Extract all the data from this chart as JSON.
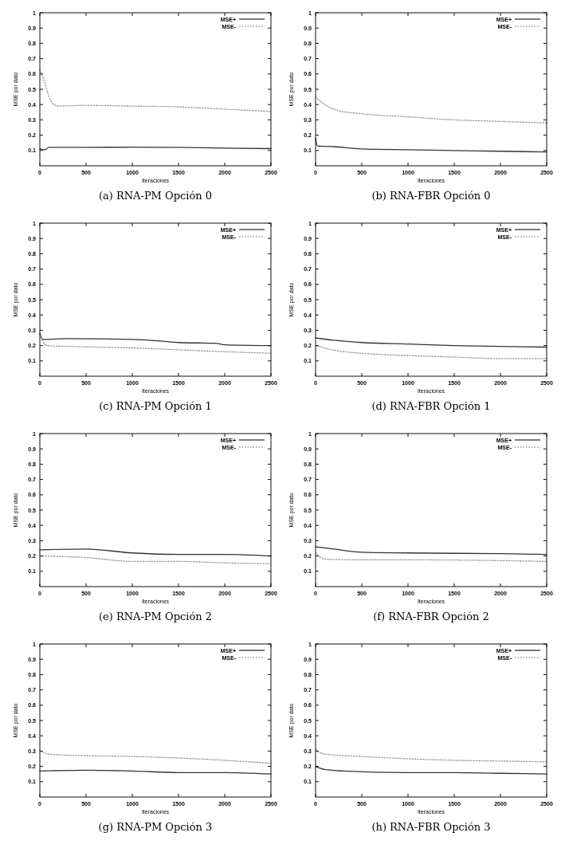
{
  "chart_data": [
    {
      "type": "line",
      "title": "(a) RNA-PM Opción 0",
      "xlabel": "Iteraciones",
      "ylabel": "MSE por dato",
      "xlim": [
        0,
        2500
      ],
      "xticks": [
        0,
        500,
        1000,
        1500,
        2000,
        2500
      ],
      "ylim": [
        0,
        1
      ],
      "yticks": [
        0.1,
        0.2,
        0.3,
        0.4,
        0.5,
        0.6,
        0.7,
        0.8,
        0.9,
        1
      ],
      "legend": "top right",
      "series": [
        {
          "name": "MSE+",
          "color": "#333333",
          "line_style": "solid",
          "x": [
            0,
            50,
            100,
            500,
            1000,
            1500,
            2000,
            2500
          ],
          "values": [
            0.11,
            0.105,
            0.12,
            0.12,
            0.122,
            0.12,
            0.115,
            0.112
          ]
        },
        {
          "name": "MSE-",
          "color": "#999999",
          "line_style": "dotted",
          "x": [
            0,
            50,
            100,
            150,
            200,
            500,
            1000,
            1500,
            2000,
            2500
          ],
          "values": [
            0.63,
            0.55,
            0.45,
            0.4,
            0.39,
            0.395,
            0.39,
            0.385,
            0.37,
            0.355
          ]
        }
      ]
    },
    {
      "type": "line",
      "title": "(b) RNA-FBR Opción 0",
      "xlabel": "Iteraciones",
      "ylabel": "MSE por dato",
      "xlim": [
        0,
        2500
      ],
      "xticks": [
        0,
        500,
        1000,
        1500,
        2000,
        2500
      ],
      "ylim": [
        0,
        1
      ],
      "yticks": [
        0.1,
        0.2,
        0.3,
        0.4,
        0.5,
        0.6,
        0.7,
        0.8,
        0.9,
        1
      ],
      "legend": "top right",
      "series": [
        {
          "name": "MSE+",
          "color": "#333333",
          "line_style": "solid",
          "x": [
            0,
            20,
            200,
            500,
            1000,
            1500,
            2000,
            2500
          ],
          "values": [
            0.18,
            0.13,
            0.125,
            0.11,
            0.105,
            0.1,
            0.095,
            0.09
          ]
        },
        {
          "name": "MSE-",
          "color": "#999999",
          "line_style": "dotted",
          "x": [
            0,
            100,
            250,
            500,
            1000,
            1500,
            2000,
            2500
          ],
          "values": [
            0.45,
            0.4,
            0.36,
            0.34,
            0.32,
            0.3,
            0.29,
            0.28
          ]
        }
      ]
    },
    {
      "type": "line",
      "title": "(c) RNA-PM Opción 1",
      "xlabel": "Iteraciones",
      "ylabel": "MSE por dato",
      "xlim": [
        0,
        2500
      ],
      "xticks": [
        0,
        500,
        1000,
        1500,
        2000,
        2500
      ],
      "ylim": [
        0,
        1
      ],
      "yticks": [
        0.1,
        0.2,
        0.3,
        0.4,
        0.5,
        0.6,
        0.7,
        0.8,
        0.9,
        1
      ],
      "legend": "top right",
      "series": [
        {
          "name": "MSE+",
          "color": "#333333",
          "line_style": "solid",
          "x": [
            0,
            30,
            300,
            1000,
            1300,
            1500,
            1900,
            2000,
            2500
          ],
          "values": [
            0.28,
            0.24,
            0.245,
            0.24,
            0.23,
            0.22,
            0.215,
            0.205,
            0.2
          ]
        },
        {
          "name": "MSE-",
          "color": "#999999",
          "line_style": "dotted",
          "x": [
            0,
            80,
            300,
            1000,
            1400,
            2000,
            2500
          ],
          "values": [
            0.27,
            0.2,
            0.195,
            0.185,
            0.175,
            0.16,
            0.15
          ]
        }
      ]
    },
    {
      "type": "line",
      "title": "(d) RNA-FBR Opción 1",
      "xlabel": "Iteraciones",
      "ylabel": "MSE por dato",
      "xlim": [
        0,
        2500
      ],
      "xticks": [
        0,
        500,
        1000,
        1500,
        2000,
        2500
      ],
      "ylim": [
        0,
        1
      ],
      "yticks": [
        0.1,
        0.2,
        0.3,
        0.4,
        0.5,
        0.6,
        0.7,
        0.8,
        0.9,
        1
      ],
      "legend": "top right",
      "series": [
        {
          "name": "MSE+",
          "color": "#333333",
          "line_style": "solid",
          "x": [
            0,
            200,
            500,
            1000,
            1500,
            2000,
            2500
          ],
          "values": [
            0.25,
            0.235,
            0.22,
            0.21,
            0.2,
            0.195,
            0.19
          ]
        },
        {
          "name": "MSE-",
          "color": "#999999",
          "line_style": "dotted",
          "x": [
            0,
            200,
            500,
            1000,
            1500,
            2000,
            2500
          ],
          "values": [
            0.2,
            0.17,
            0.15,
            0.135,
            0.125,
            0.115,
            0.115
          ]
        }
      ]
    },
    {
      "type": "line",
      "title": "(e) RNA-PM Opción 2",
      "xlabel": "Iteraciones",
      "ylabel": "MSE por dato",
      "xlim": [
        0,
        2500
      ],
      "xticks": [
        0,
        500,
        1000,
        1500,
        2000,
        2500
      ],
      "ylim": [
        0,
        1
      ],
      "yticks": [
        0.1,
        0.2,
        0.3,
        0.4,
        0.5,
        0.6,
        0.7,
        0.8,
        0.9,
        1
      ],
      "legend": "top right",
      "series": [
        {
          "name": "MSE+",
          "color": "#333333",
          "line_style": "solid",
          "x": [
            0,
            500,
            1000,
            1500,
            2000,
            2500
          ],
          "values": [
            0.24,
            0.245,
            0.22,
            0.21,
            0.21,
            0.2
          ]
        },
        {
          "name": "MSE-",
          "color": "#999999",
          "line_style": "dotted",
          "x": [
            0,
            500,
            1000,
            1500,
            2000,
            2500
          ],
          "values": [
            0.2,
            0.19,
            0.165,
            0.165,
            0.155,
            0.15
          ]
        }
      ]
    },
    {
      "type": "line",
      "title": "(f) RNA-FBR Opción 2",
      "xlabel": "Iteraciones",
      "ylabel": "MSE por dato",
      "xlim": [
        0,
        2500
      ],
      "xticks": [
        0,
        500,
        1000,
        1500,
        2000,
        2500
      ],
      "ylim": [
        0,
        1
      ],
      "yticks": [
        0.1,
        0.2,
        0.3,
        0.4,
        0.5,
        0.6,
        0.7,
        0.8,
        0.9,
        1
      ],
      "legend": "top right",
      "series": [
        {
          "name": "MSE+",
          "color": "#333333",
          "line_style": "solid",
          "x": [
            0,
            200,
            500,
            1000,
            2000,
            2500
          ],
          "values": [
            0.26,
            0.245,
            0.225,
            0.22,
            0.215,
            0.21
          ]
        },
        {
          "name": "MSE-",
          "color": "#999999",
          "line_style": "dotted",
          "x": [
            0,
            100,
            500,
            1000,
            2000,
            2500
          ],
          "values": [
            0.22,
            0.18,
            0.175,
            0.175,
            0.17,
            0.165
          ]
        }
      ]
    },
    {
      "type": "line",
      "title": "(g) RNA-PM Opción 3",
      "xlabel": "Iteraciones",
      "ylabel": "MSE por dato",
      "xlim": [
        0,
        2500
      ],
      "xticks": [
        0,
        500,
        1000,
        1500,
        2000,
        2500
      ],
      "ylim": [
        0,
        1
      ],
      "yticks": [
        0.1,
        0.2,
        0.3,
        0.4,
        0.5,
        0.6,
        0.7,
        0.8,
        0.9,
        1
      ],
      "legend": "top right",
      "series": [
        {
          "name": "MSE+",
          "color": "#333333",
          "line_style": "solid",
          "x": [
            0,
            500,
            1000,
            1500,
            2000,
            2500
          ],
          "values": [
            0.17,
            0.175,
            0.17,
            0.16,
            0.16,
            0.15
          ]
        },
        {
          "name": "MSE-",
          "color": "#999999",
          "line_style": "dotted",
          "x": [
            0,
            100,
            500,
            1000,
            1500,
            2000,
            2500
          ],
          "values": [
            0.3,
            0.28,
            0.27,
            0.265,
            0.255,
            0.24,
            0.22
          ]
        }
      ]
    },
    {
      "type": "line",
      "title": "(h) RNA-FBR Opción 3",
      "xlabel": "Iteraciones",
      "ylabel": "MSE por dato",
      "xlim": [
        0,
        2500
      ],
      "xticks": [
        0,
        500,
        1000,
        1500,
        2000,
        2500
      ],
      "ylim": [
        0,
        1
      ],
      "yticks": [
        0.1,
        0.2,
        0.3,
        0.4,
        0.5,
        0.6,
        0.7,
        0.8,
        0.9,
        1
      ],
      "legend": "top right",
      "series": [
        {
          "name": "MSE+",
          "color": "#333333",
          "line_style": "solid",
          "x": [
            0,
            100,
            300,
            1000,
            1500,
            2000,
            2500
          ],
          "values": [
            0.2,
            0.18,
            0.17,
            0.16,
            0.16,
            0.155,
            0.15
          ]
        },
        {
          "name": "MSE-",
          "color": "#999999",
          "line_style": "dotted",
          "x": [
            0,
            100,
            500,
            1000,
            1500,
            2000,
            2500
          ],
          "values": [
            0.31,
            0.28,
            0.265,
            0.25,
            0.24,
            0.235,
            0.23
          ]
        }
      ]
    }
  ]
}
